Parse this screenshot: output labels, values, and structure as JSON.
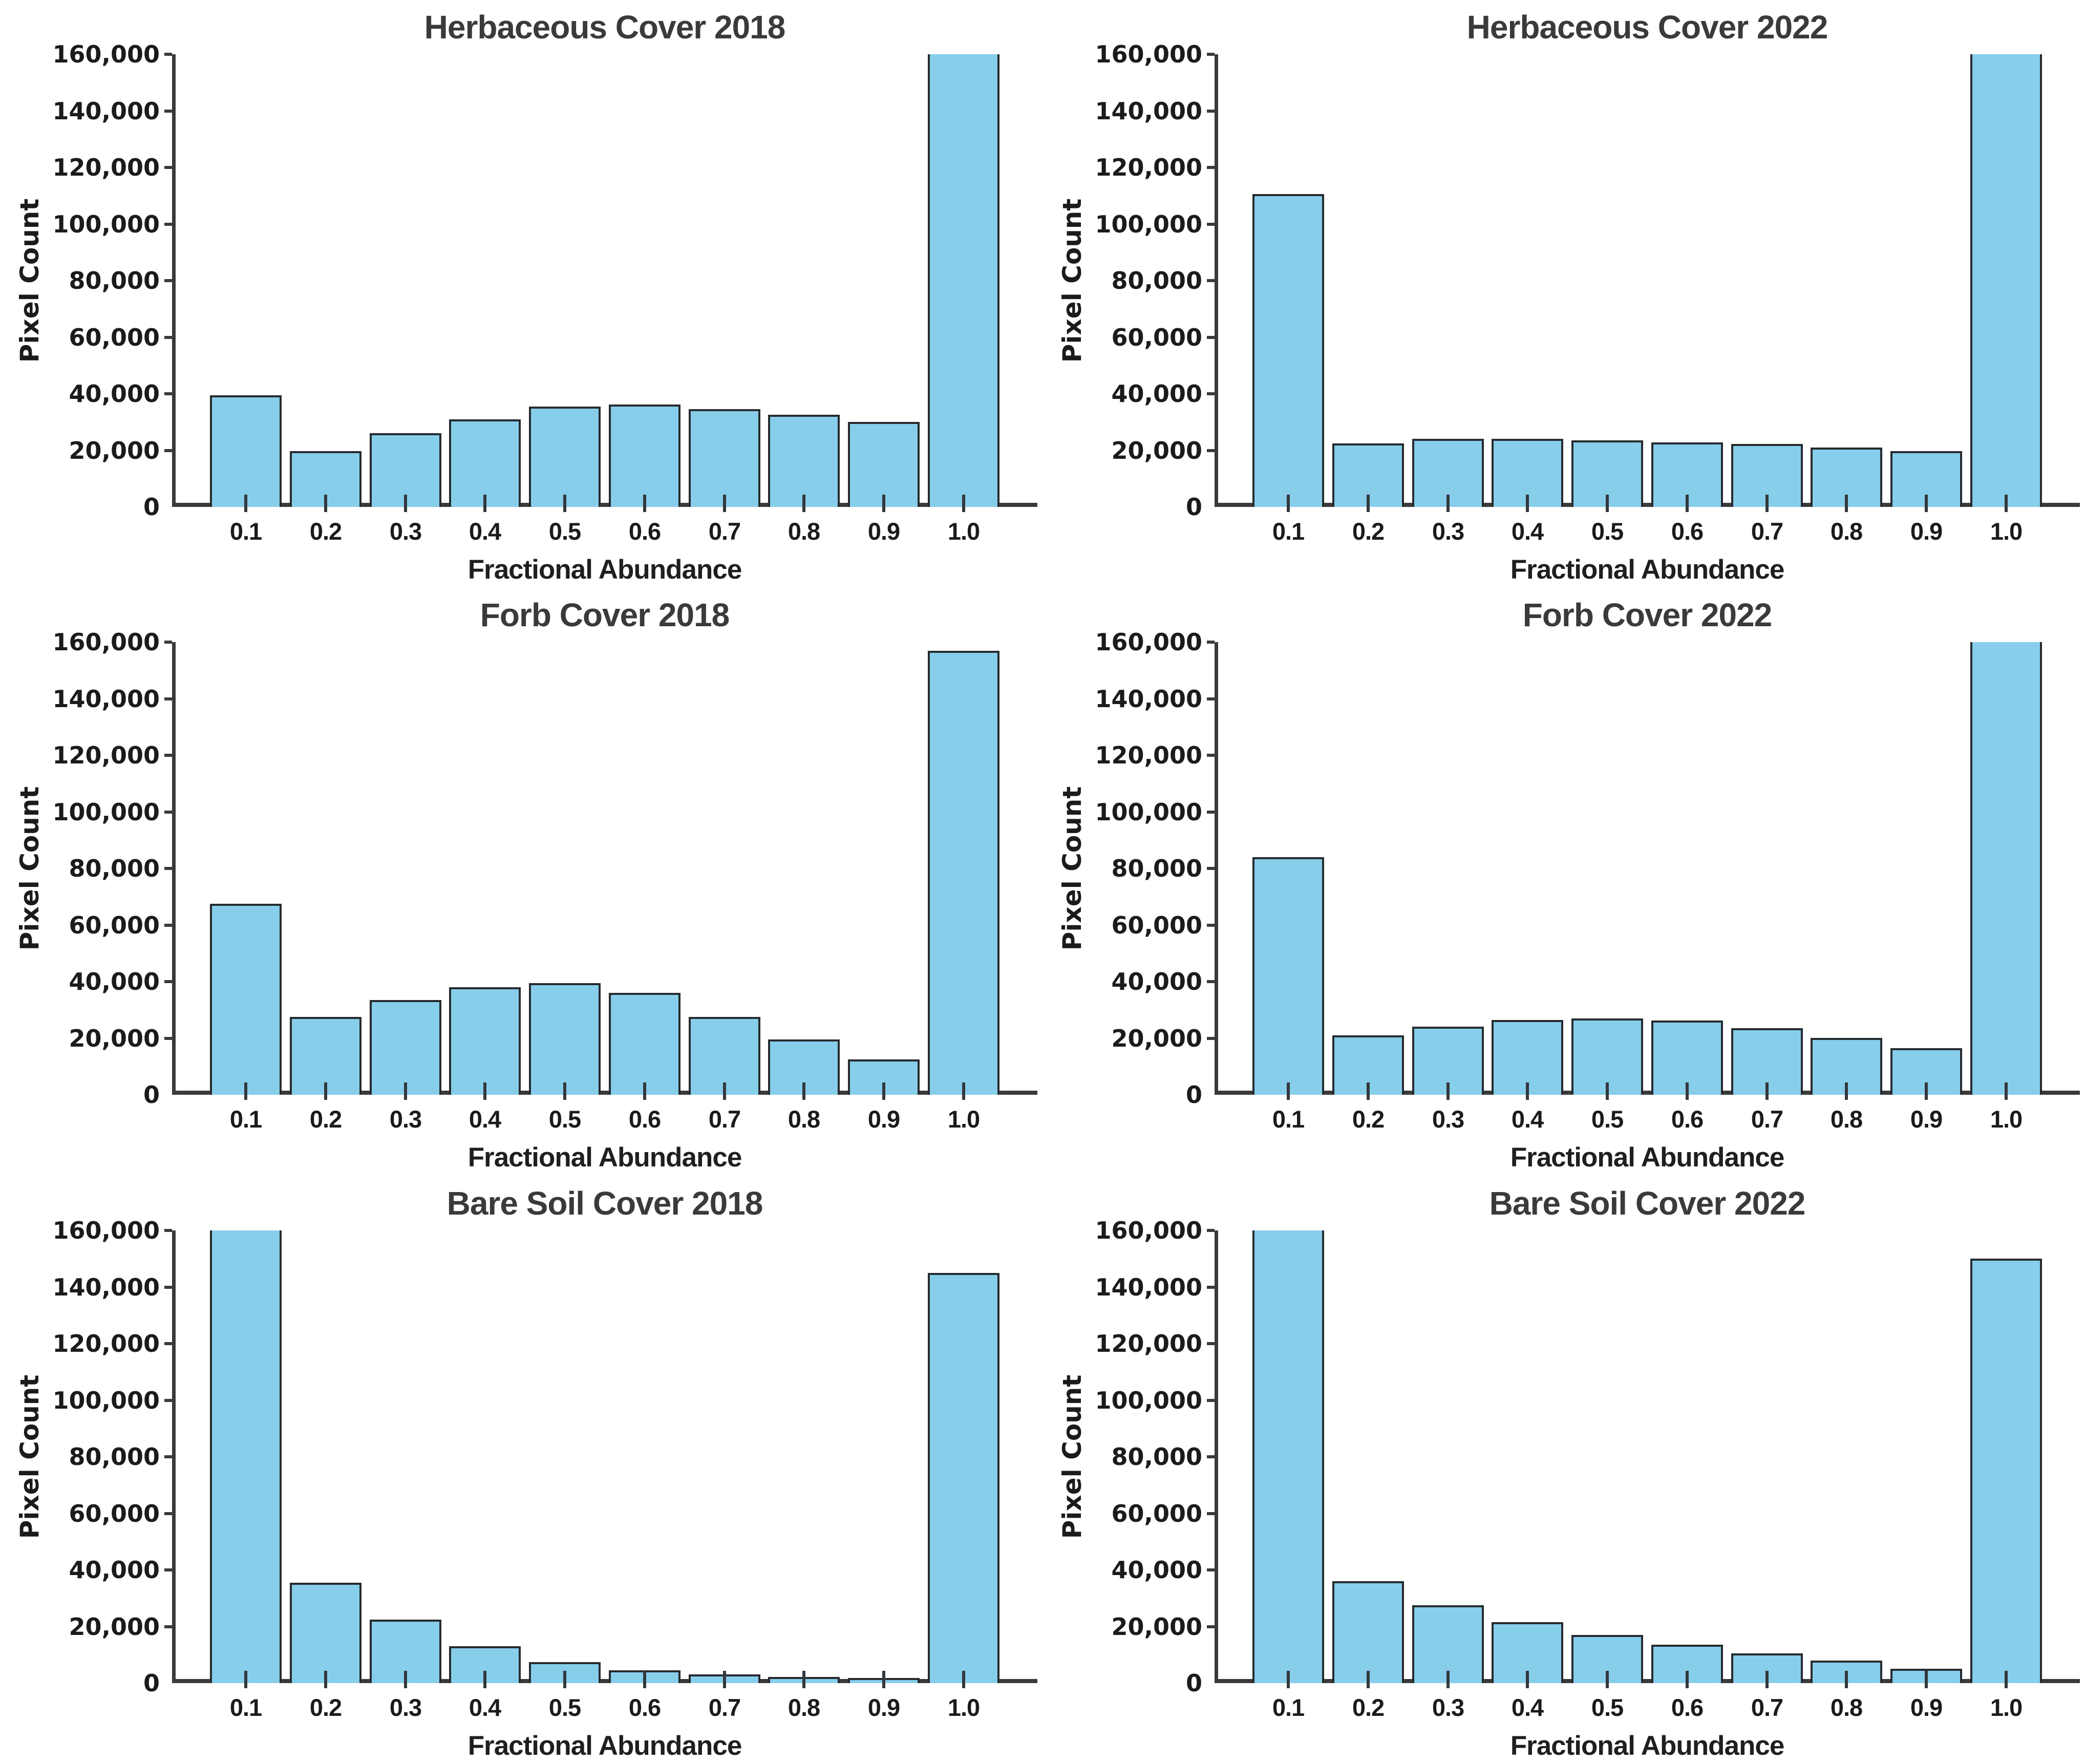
{
  "figure": {
    "background": "#ffffff",
    "bar_fill": "#87CEEB",
    "bar_edge": "#262b2f",
    "spine_color": "#3a3a3a",
    "title_color": "#3a3a3a",
    "text_color": "#1b1b1b",
    "grid_rows": 3,
    "grid_cols": 2
  },
  "chart_data": [
    {
      "type": "bar",
      "title": "Herbaceous Cover 2018",
      "xlabel": "Fractional Abundance",
      "ylabel": "Pixel Count",
      "categories": [
        "0.1",
        "0.2",
        "0.3",
        "0.4",
        "0.5",
        "0.6",
        "0.7",
        "0.8",
        "0.9",
        "1.0"
      ],
      "values": [
        39500,
        19700,
        26000,
        31000,
        35500,
        36200,
        34600,
        32500,
        30000,
        160000
      ],
      "clipped_at_top": [
        9
      ],
      "ylim": [
        0,
        160000
      ],
      "ytick_step": 20000,
      "ytick_labels": [
        "0",
        "20,000",
        "40,000",
        "60,000",
        "80,000",
        "100,000",
        "120,000",
        "140,000",
        "160,000"
      ],
      "grid": false,
      "legend": null
    },
    {
      "type": "bar",
      "title": "Herbaceous Cover 2022",
      "xlabel": "Fractional Abundance",
      "ylabel": "Pixel Count",
      "categories": [
        "0.1",
        "0.2",
        "0.3",
        "0.4",
        "0.5",
        "0.6",
        "0.7",
        "0.8",
        "0.9",
        "1.0"
      ],
      "values": [
        110500,
        22500,
        24000,
        24000,
        23500,
        22800,
        22300,
        21000,
        19700,
        160000
      ],
      "clipped_at_top": [
        9
      ],
      "ylim": [
        0,
        160000
      ],
      "ytick_step": 20000,
      "ytick_labels": [
        "0",
        "20,000",
        "40,000",
        "60,000",
        "80,000",
        "100,000",
        "120,000",
        "140,000",
        "160,000"
      ],
      "grid": false,
      "legend": null
    },
    {
      "type": "bar",
      "title": "Forb Cover 2018",
      "xlabel": "Fractional Abundance",
      "ylabel": "Pixel Count",
      "categories": [
        "0.1",
        "0.2",
        "0.3",
        "0.4",
        "0.5",
        "0.6",
        "0.7",
        "0.8",
        "0.9",
        "1.0"
      ],
      "values": [
        67500,
        27500,
        33500,
        38000,
        39500,
        36000,
        27500,
        19500,
        12500,
        157000
      ],
      "clipped_at_top": [],
      "ylim": [
        0,
        160000
      ],
      "ytick_step": 20000,
      "ytick_labels": [
        "0",
        "20,000",
        "40,000",
        "60,000",
        "80,000",
        "100,000",
        "120,000",
        "140,000",
        "160,000"
      ],
      "grid": false,
      "legend": null
    },
    {
      "type": "bar",
      "title": "Forb Cover 2022",
      "xlabel": "Fractional Abundance",
      "ylabel": "Pixel Count",
      "categories": [
        "0.1",
        "0.2",
        "0.3",
        "0.4",
        "0.5",
        "0.6",
        "0.7",
        "0.8",
        "0.9",
        "1.0"
      ],
      "values": [
        84000,
        21000,
        24000,
        26500,
        27000,
        26200,
        23500,
        20000,
        16500,
        160000
      ],
      "clipped_at_top": [
        9
      ],
      "ylim": [
        0,
        160000
      ],
      "ytick_step": 20000,
      "ytick_labels": [
        "0",
        "20,000",
        "40,000",
        "60,000",
        "80,000",
        "100,000",
        "120,000",
        "140,000",
        "160,000"
      ],
      "grid": false,
      "legend": null
    },
    {
      "type": "bar",
      "title": "Bare Soil Cover 2018",
      "xlabel": "Fractional Abundance",
      "ylabel": "Pixel Count",
      "categories": [
        "0.1",
        "0.2",
        "0.3",
        "0.4",
        "0.5",
        "0.6",
        "0.7",
        "0.8",
        "0.9",
        "1.0"
      ],
      "values": [
        160000,
        35500,
        22500,
        13000,
        7500,
        4500,
        3000,
        2200,
        1800,
        145000
      ],
      "clipped_at_top": [
        0
      ],
      "ylim": [
        0,
        160000
      ],
      "ytick_step": 20000,
      "ytick_labels": [
        "0",
        "20,000",
        "40,000",
        "60,000",
        "80,000",
        "100,000",
        "120,000",
        "140,000",
        "160,000"
      ],
      "grid": false,
      "legend": null
    },
    {
      "type": "bar",
      "title": "Bare Soil Cover 2022",
      "xlabel": "Fractional Abundance",
      "ylabel": "Pixel Count",
      "categories": [
        "0.1",
        "0.2",
        "0.3",
        "0.4",
        "0.5",
        "0.6",
        "0.7",
        "0.8",
        "0.9",
        "1.0"
      ],
      "values": [
        160000,
        36000,
        27500,
        21500,
        17000,
        13500,
        10500,
        8000,
        5000,
        150000
      ],
      "clipped_at_top": [
        0
      ],
      "ylim": [
        0,
        160000
      ],
      "ytick_step": 20000,
      "ytick_labels": [
        "0",
        "20,000",
        "40,000",
        "60,000",
        "80,000",
        "100,000",
        "120,000",
        "140,000",
        "160,000"
      ],
      "grid": false,
      "legend": null
    }
  ]
}
